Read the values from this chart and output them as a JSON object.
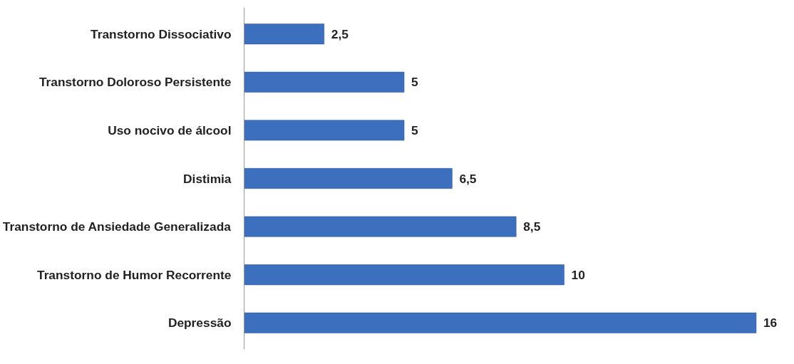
{
  "chart_data": {
    "type": "bar",
    "orientation": "horizontal",
    "categories": [
      "Transtorno Dissociativo",
      "Transtorno Doloroso Persistente",
      "Uso nocivo de álcool",
      "Distimia",
      "Transtorno de Ansiedade Generalizada",
      "Transtorno de Humor Recorrente",
      "Depressão"
    ],
    "values": [
      2.5,
      5,
      5,
      6.5,
      8.5,
      10,
      16
    ],
    "value_labels": [
      "2,5",
      "5",
      "5",
      "6,5",
      "8,5",
      "10",
      "16"
    ],
    "color": "#3c6fbe",
    "grid": false,
    "tick_labels": "y"
  }
}
